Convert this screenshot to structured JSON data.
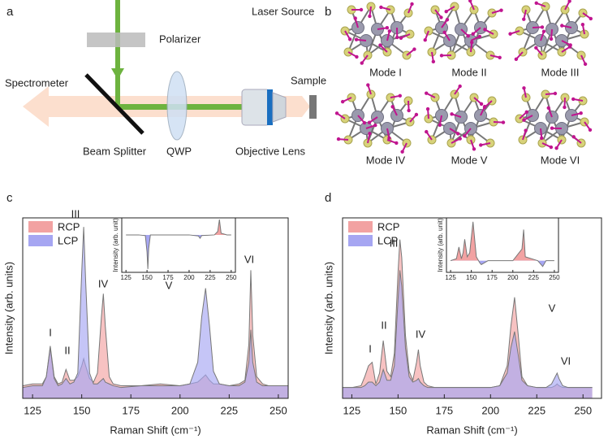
{
  "panels": [
    "a",
    "b",
    "c",
    "d"
  ],
  "diagram": {
    "laser": "Laser Source",
    "polarizer": "Polarizer",
    "spectrometer": "Spectrometer",
    "sample": "Sample",
    "splitter": "Beam Splitter",
    "qwp": "QWP",
    "objective": "Objective Lens"
  },
  "modes": [
    "Mode I",
    "Mode II",
    "Mode III",
    "Mode IV",
    "Mode V",
    "Mode VI"
  ],
  "chart_data": [
    {
      "type": "area",
      "xlabel": "Raman Shift (cm⁻¹)",
      "ylabel": "Intensity (arb. units)",
      "x": [
        120,
        125,
        130,
        132,
        134,
        136,
        138,
        140,
        142,
        144,
        146,
        148,
        150,
        151,
        152,
        154,
        156,
        158,
        160,
        161,
        162,
        164,
        166,
        170,
        180,
        190,
        200,
        205,
        209,
        211,
        213,
        215,
        217,
        220,
        225,
        230,
        233,
        235,
        236,
        237,
        239,
        242,
        245,
        250,
        255
      ],
      "series": [
        {
          "name": "RCP",
          "color": "#f2a2a2",
          "values": [
            7,
            8,
            8,
            12,
            29,
            12,
            8,
            9,
            16,
            10,
            10,
            12,
            18,
            22,
            18,
            11,
            9,
            14,
            45,
            58,
            40,
            12,
            8,
            7,
            7,
            8,
            7,
            8,
            9,
            11,
            13,
            10,
            8,
            8,
            7,
            8,
            10,
            30,
            71,
            35,
            12,
            8,
            7,
            7,
            7
          ]
        },
        {
          "name": "LCP",
          "color": "#a6a6f2",
          "values": [
            6,
            7,
            7,
            12,
            28,
            11,
            7,
            8,
            11,
            8,
            9,
            14,
            70,
            95,
            65,
            14,
            8,
            8,
            10,
            11,
            9,
            8,
            7,
            6,
            7,
            7,
            7,
            8,
            20,
            45,
            61,
            40,
            15,
            8,
            7,
            7,
            9,
            20,
            38,
            20,
            9,
            7,
            7,
            7,
            7
          ]
        }
      ],
      "xlim": [
        120,
        255
      ],
      "ylim": [
        0,
        100
      ],
      "xticks": [
        125,
        150,
        175,
        200,
        225,
        250
      ],
      "annotations": [
        "I",
        "II",
        "III",
        "IV",
        "V",
        "VI"
      ]
    },
    {
      "type": "line",
      "ylabel": "Intensity (arb. unit)",
      "x": [
        125,
        140,
        148,
        150,
        151,
        152,
        154,
        160,
        200,
        211,
        213,
        215,
        230,
        234,
        236,
        238,
        245,
        250
      ],
      "values": [
        0,
        0,
        -0.02,
        -0.5,
        -1,
        -0.4,
        0,
        0,
        0,
        -0.03,
        -0.1,
        -0.02,
        0,
        0.1,
        0.45,
        0.05,
        0,
        0
      ],
      "color": "#777777",
      "fill_colors": [
        "#f2a2a2",
        "#a6a6f2"
      ],
      "xlim": [
        120,
        255
      ],
      "ylim": [
        -1.1,
        0.5
      ],
      "xticks": [
        125,
        150,
        175,
        200,
        225,
        250
      ]
    },
    {
      "type": "area",
      "xlabel": "Raman Shift (cm⁻¹)",
      "ylabel": "Intensity (arb. units)",
      "x": [
        120,
        125,
        130,
        132,
        134,
        136,
        138,
        140,
        142,
        144,
        146,
        148,
        150,
        151,
        152,
        154,
        156,
        158,
        160,
        161,
        162,
        164,
        166,
        170,
        180,
        190,
        200,
        205,
        209,
        211,
        213,
        215,
        217,
        220,
        225,
        230,
        233,
        235,
        236,
        237,
        239,
        242,
        245,
        250,
        255
      ],
      "series": [
        {
          "name": "RCP",
          "color": "#f2a2a2",
          "values": [
            6,
            6,
            7,
            12,
            18,
            20,
            8,
            14,
            32,
            15,
            12,
            25,
            70,
            88,
            78,
            35,
            15,
            10,
            20,
            27,
            18,
            9,
            7,
            6,
            6,
            6,
            6,
            7,
            18,
            40,
            56,
            35,
            12,
            7,
            6,
            6,
            6,
            7,
            8,
            7,
            6,
            6,
            6,
            6,
            6
          ]
        },
        {
          "name": "LCP",
          "color": "#a6a6f2",
          "values": [
            6,
            6,
            6,
            7,
            9,
            9,
            7,
            9,
            16,
            10,
            10,
            18,
            55,
            71,
            62,
            28,
            12,
            9,
            10,
            11,
            9,
            7,
            6,
            6,
            6,
            6,
            6,
            7,
            14,
            28,
            37,
            24,
            10,
            7,
            6,
            6,
            8,
            12,
            14,
            11,
            7,
            6,
            6,
            6,
            6
          ]
        }
      ],
      "xlim": [
        120,
        260
      ],
      "ylim": [
        0,
        100
      ],
      "xticks": [
        125,
        150,
        175,
        200,
        225,
        250
      ],
      "annotations": [
        "I",
        "II",
        "III",
        "IV",
        "V",
        "VI"
      ]
    },
    {
      "type": "line",
      "ylabel": "Intensity (arb. unit)",
      "x": [
        125,
        132,
        135,
        138,
        140,
        142,
        145,
        148,
        152,
        156,
        160,
        162,
        170,
        200,
        211,
        213,
        215,
        230,
        236,
        240,
        250
      ],
      "values": [
        0,
        0.05,
        0.35,
        0.05,
        0.2,
        0.55,
        0.1,
        0.2,
        1.0,
        0.1,
        -0.05,
        -0.1,
        0,
        0,
        0.3,
        0.8,
        0.1,
        0,
        -0.15,
        0,
        0
      ],
      "color": "#777777",
      "fill_colors": [
        "#f2a2a2",
        "#a6a6f2"
      ],
      "xlim": [
        120,
        255
      ],
      "ylim": [
        -0.3,
        1.1
      ],
      "xticks": [
        125,
        150,
        175,
        200,
        225,
        250
      ]
    }
  ]
}
